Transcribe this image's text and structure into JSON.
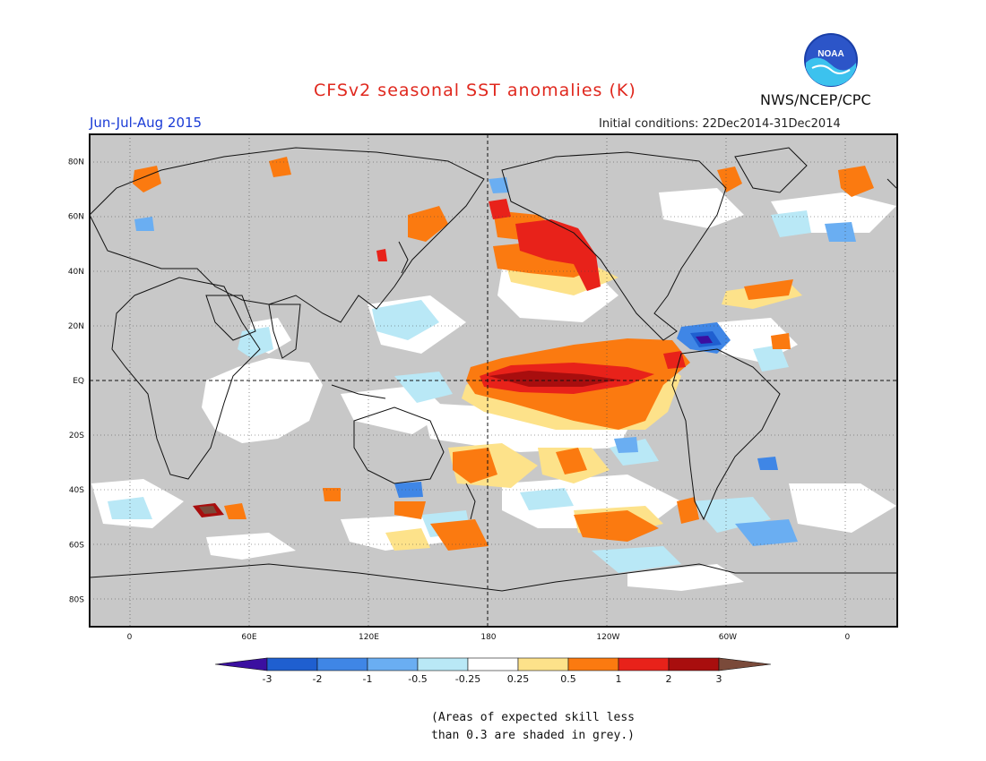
{
  "title": "CFSv2 seasonal SST anomalies (K)",
  "season": "Jun-Jul-Aug 2015",
  "initial_conditions": "Initial conditions: 22Dec2014-31Dec2014",
  "agency": "NWS/NCEP/CPC",
  "logo_text": "NOAA",
  "note_line1": "(Areas of expected skill less",
  "note_line2": "than 0.3 are shaded in grey.)",
  "map": {
    "lon_labels": [
      {
        "lon": 0,
        "label": "0"
      },
      {
        "lon": 60,
        "label": "60E"
      },
      {
        "lon": 120,
        "label": "120E"
      },
      {
        "lon": 180,
        "label": "180"
      },
      {
        "lon": 240,
        "label": "120W"
      },
      {
        "lon": 300,
        "label": "60W"
      },
      {
        "lon": 360,
        "label": "0"
      }
    ],
    "lat_labels": [
      {
        "lat": 80,
        "label": "80N"
      },
      {
        "lat": 60,
        "label": "60N"
      },
      {
        "lat": 40,
        "label": "40N"
      },
      {
        "lat": 20,
        "label": "20N"
      },
      {
        "lat": 0,
        "label": "EQ"
      },
      {
        "lat": -20,
        "label": "20S"
      },
      {
        "lat": -40,
        "label": "40S"
      },
      {
        "lat": -60,
        "label": "60S"
      },
      {
        "lat": -80,
        "label": "80S"
      }
    ],
    "lon_range": [
      -20,
      385
    ],
    "lat_range": [
      -90,
      90
    ]
  },
  "colorbar": {
    "levels": [
      "-3",
      "-2",
      "-1",
      "-0.5",
      "-0.25",
      "0.25",
      "0.5",
      "1",
      "2",
      "3"
    ],
    "colors": [
      "#3b0fa0",
      "#1f5fd0",
      "#3f86e6",
      "#6aaef2",
      "#b9e8f6",
      "#ffffff",
      "#fde28a",
      "#fb7a10",
      "#e8221a",
      "#a80e0e",
      "#7a4a3a"
    ]
  },
  "colors": {
    "skill_grey": "#c8c8c8",
    "title_red": "#e0281e",
    "season_blue": "#1a3bd6"
  }
}
